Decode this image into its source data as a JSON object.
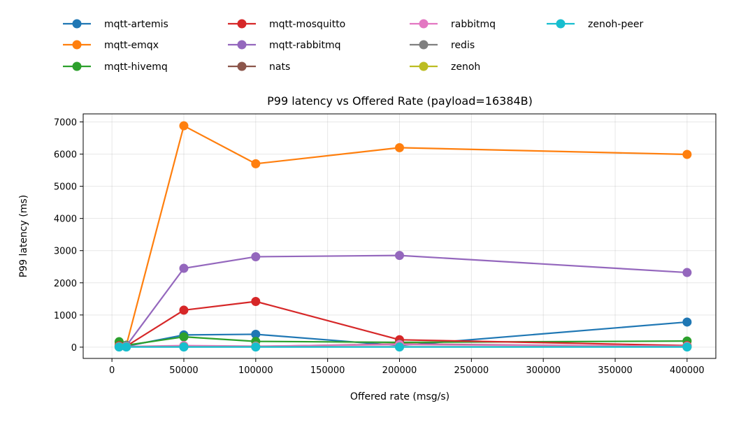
{
  "chart_data": {
    "type": "line",
    "title": "P99 latency vs Offered Rate (payload=16384B)",
    "xlabel": "Offered rate (msg/s)",
    "ylabel": "P99 latency (ms)",
    "xlim": [
      -20000,
      420000
    ],
    "ylim": [
      -350,
      7250
    ],
    "xticks": [
      0,
      50000,
      100000,
      150000,
      200000,
      250000,
      300000,
      350000,
      400000
    ],
    "yticks": [
      0,
      1000,
      2000,
      3000,
      4000,
      5000,
      6000,
      7000
    ],
    "x": [
      5000,
      10000,
      50000,
      100000,
      200000,
      400000
    ],
    "grid": true,
    "legend_position": "top, above plot",
    "series": [
      {
        "name": "mqtt-artemis",
        "color": "#1f77b4",
        "values": [
          50,
          30,
          380,
          400,
          50,
          780
        ]
      },
      {
        "name": "mqtt-emqx",
        "color": "#ff7f0e",
        "values": [
          80,
          60,
          6880,
          5700,
          6200,
          5990
        ]
      },
      {
        "name": "mqtt-hivemq",
        "color": "#2ca02c",
        "values": [
          170,
          60,
          320,
          180,
          150,
          190
        ]
      },
      {
        "name": "mqtt-mosquitto",
        "color": "#d62728",
        "values": [
          40,
          30,
          1150,
          1420,
          230,
          50
        ]
      },
      {
        "name": "mqtt-rabbitmq",
        "color": "#9467bd",
        "values": [
          20,
          40,
          2450,
          2810,
          2850,
          2320
        ]
      },
      {
        "name": "nats",
        "color": "#8c564b",
        "values": [
          10,
          10,
          20,
          20,
          100,
          20
        ]
      },
      {
        "name": "rabbitmq",
        "color": "#e377c2",
        "values": [
          20,
          20,
          50,
          30,
          80,
          30
        ]
      },
      {
        "name": "redis",
        "color": "#7f7f7f",
        "values": [
          10,
          10,
          10,
          10,
          10,
          10
        ]
      },
      {
        "name": "zenoh",
        "color": "#bcbd22",
        "values": [
          10,
          10,
          10,
          10,
          10,
          10
        ]
      },
      {
        "name": "zenoh-peer",
        "color": "#17becf",
        "values": [
          5,
          5,
          5,
          5,
          5,
          5
        ]
      }
    ]
  }
}
